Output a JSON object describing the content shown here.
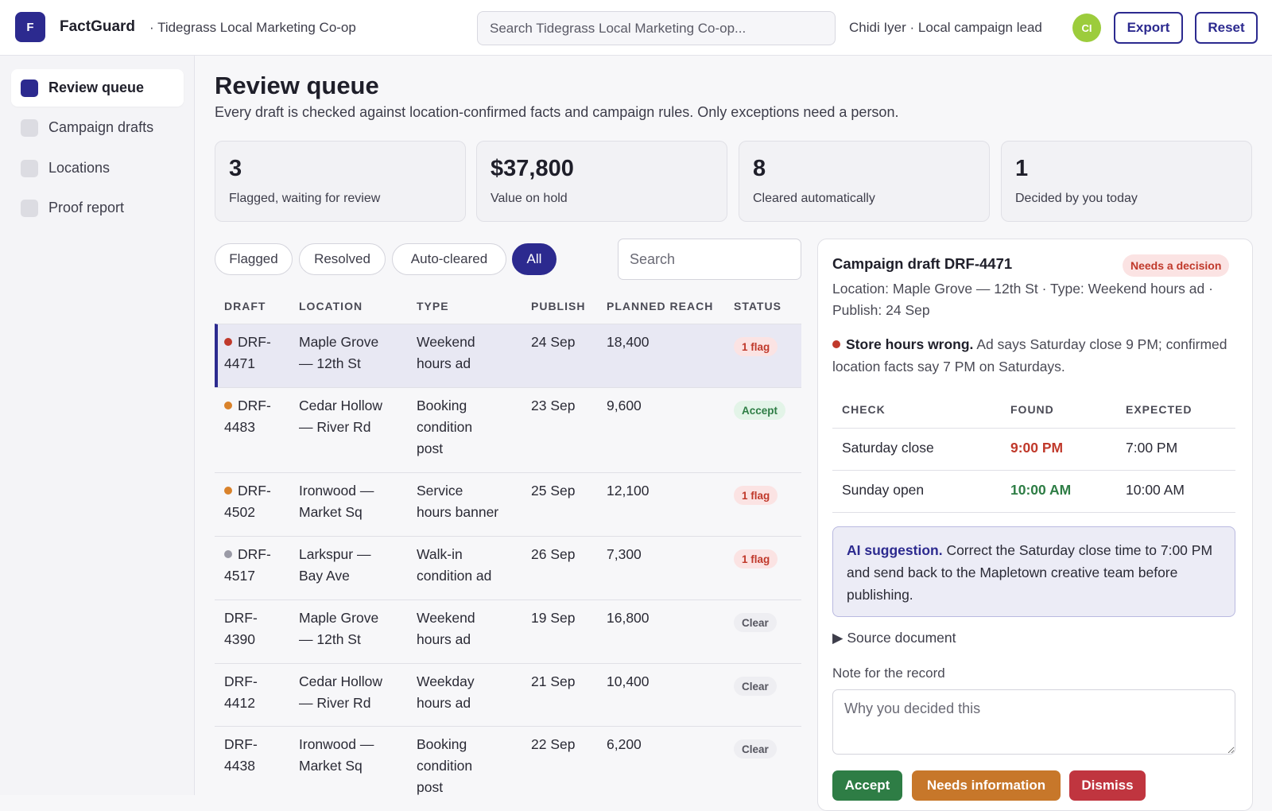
{
  "header": {
    "logo_letter": "F",
    "brand": "FactGuard",
    "org": "· Tidegrass Local Marketing Co-op",
    "search_placeholder": "Search Tidegrass Local Marketing Co-op...",
    "user": "Chidi Iyer · Local campaign lead",
    "avatar_initials": "CI",
    "export_label": "Export",
    "reset_label": "Reset"
  },
  "sidebar": {
    "items": [
      {
        "label": "Review queue",
        "active": true
      },
      {
        "label": "Campaign drafts",
        "active": false
      },
      {
        "label": "Locations",
        "active": false
      },
      {
        "label": "Proof report",
        "active": false
      }
    ]
  },
  "main": {
    "title": "Review queue",
    "subtitle": "Every draft is checked against location-confirmed facts and campaign rules. Only exceptions need a person.",
    "stats": [
      {
        "value": "3",
        "label": "Flagged, waiting for review"
      },
      {
        "value": "$37,800",
        "label": "Value on hold"
      },
      {
        "value": "8",
        "label": "Cleared automatically"
      },
      {
        "value": "1",
        "label": "Decided by you today"
      }
    ],
    "filters": [
      "Flagged",
      "Resolved",
      "Auto-cleared",
      "All"
    ],
    "active_filter": "All",
    "search_placeholder": "Search"
  },
  "table": {
    "headers": [
      "DRAFT",
      "LOCATION",
      "TYPE",
      "PUBLISH",
      "PLANNED REACH",
      "STATUS"
    ],
    "rows": [
      {
        "draft1": "DRF-",
        "draft2": "4471",
        "loc1": "Maple Grove",
        "loc2": "— 12th St",
        "type1": "Weekend",
        "type2": "hours ad",
        "type3": "",
        "publish": "24 Sep",
        "reach": "18,400",
        "status": "1 flag",
        "dot": "#c0392b"
      },
      {
        "draft1": "DRF-",
        "draft2": "4483",
        "loc1": "Cedar Hollow",
        "loc2": "— River Rd",
        "type1": "Booking",
        "type2": "condition",
        "type3": "post",
        "publish": "23 Sep",
        "reach": "9,600",
        "status": "Accept",
        "dot": "#d9822b"
      },
      {
        "draft1": "DRF-",
        "draft2": "4502",
        "loc1": "Ironwood —",
        "loc2": "Market Sq",
        "type1": "Service",
        "type2": "hours banner",
        "type3": "",
        "publish": "25 Sep",
        "reach": "12,100",
        "status": "1 flag",
        "dot": "#d9822b"
      },
      {
        "draft1": "DRF-",
        "draft2": "4517",
        "loc1": "Larkspur —",
        "loc2": "Bay Ave",
        "type1": "Walk-in",
        "type2": "condition ad",
        "type3": "",
        "publish": "26 Sep",
        "reach": "7,300",
        "status": "1 flag",
        "dot": "#9a9aa6"
      },
      {
        "draft1": "DRF-",
        "draft2": "4390",
        "loc1": "Maple Grove",
        "loc2": "— 12th St",
        "type1": "Weekend",
        "type2": "hours ad",
        "type3": "",
        "publish": "19 Sep",
        "reach": "16,800",
        "status": "Clear",
        "dot": ""
      },
      {
        "draft1": "DRF-",
        "draft2": "4412",
        "loc1": "Cedar Hollow",
        "loc2": "— River Rd",
        "type1": "Weekday",
        "type2": "hours ad",
        "type3": "",
        "publish": "21 Sep",
        "reach": "10,400",
        "status": "Clear",
        "dot": ""
      },
      {
        "draft1": "DRF-",
        "draft2": "4438",
        "loc1": "Ironwood —",
        "loc2": "Market Sq",
        "type1": "Booking",
        "type2": "condition",
        "type3": "post",
        "publish": "22 Sep",
        "reach": "6,200",
        "status": "Clear",
        "dot": ""
      }
    ]
  },
  "detail": {
    "title": "Campaign draft DRF-4471",
    "badge": "Needs a decision",
    "meta": "Location: Maple Grove — 12th St · Type: Weekend hours ad · Publish: 24 Sep",
    "issue_title": "Store hours wrong.",
    "issue_text": "Ad says Saturday close 9 PM; confirmed location facts say 7 PM on Saturdays.",
    "check_headers": [
      "CHECK",
      "FOUND",
      "EXPECTED"
    ],
    "checks": [
      {
        "check": "Saturday close",
        "found": "9:00 PM",
        "expected": "7:00 PM",
        "found_color": "#c0392b"
      },
      {
        "check": "Sunday open",
        "found": "10:00 AM",
        "expected": "10:00 AM",
        "found_color": "#2e7d45"
      }
    ],
    "ai_label": "AI suggestion.",
    "ai_text": "Correct the Saturday close time to 7:00 PM and send back to the Mapletown creative team before publishing.",
    "source_label": "▶ Source document",
    "note_label": "Note for the record",
    "note_placeholder": "Why you decided this",
    "actions": [
      {
        "label": "Accept",
        "color": "#2e7d45"
      },
      {
        "label": "Needs information",
        "color": "#c7772a"
      },
      {
        "label": "Dismiss",
        "color": "#c0353f"
      }
    ]
  }
}
